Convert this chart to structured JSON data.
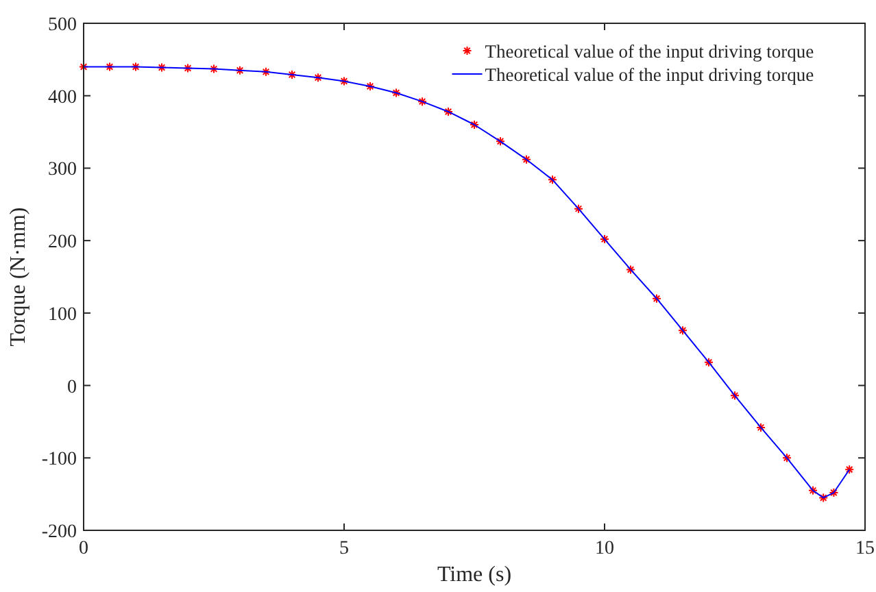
{
  "chart_data": {
    "type": "line",
    "xlabel": "Time (s)",
    "ylabel": "Torque (N·mm)",
    "x": [
      0,
      0.5,
      1,
      1.5,
      2,
      2.5,
      3,
      3.5,
      4,
      4.5,
      5,
      5.5,
      6,
      6.5,
      7,
      7.5,
      8,
      8.5,
      9,
      9.5,
      10,
      10.5,
      11,
      11.5,
      12,
      12.5,
      13,
      13.5,
      14,
      14.2,
      14.4,
      14.7
    ],
    "series": [
      {
        "name": "Theoretical value of the input driving torque",
        "type": "scatter",
        "marker": "cross",
        "color": "#ff0000",
        "values": [
          440,
          440,
          440,
          439,
          438,
          437,
          435,
          433,
          429,
          425,
          420,
          413,
          404,
          392,
          378,
          360,
          337,
          312,
          284,
          244,
          202,
          160,
          120,
          76,
          32,
          -14,
          -58,
          -100,
          -145,
          -155,
          -148,
          -116
        ]
      },
      {
        "name": "Theoretical value of the input driving torque",
        "marker": "none",
        "line_style": "solid",
        "color": "#0000ff",
        "values": [
          440,
          440,
          440,
          439,
          438,
          437,
          435,
          433,
          429,
          425,
          420,
          413,
          404,
          392,
          378,
          360,
          337,
          312,
          284,
          244,
          202,
          160,
          120,
          76,
          32,
          -14,
          -58,
          -100,
          -145,
          -155,
          -148,
          -116
        ]
      }
    ],
    "xlim": [
      0,
      15
    ],
    "xticks": [
      0,
      5,
      10,
      15
    ],
    "ylim": [
      -200,
      500
    ],
    "yticks": [
      -200,
      -100,
      0,
      100,
      200,
      300,
      400,
      500
    ],
    "grid": false,
    "legend": "top right"
  }
}
